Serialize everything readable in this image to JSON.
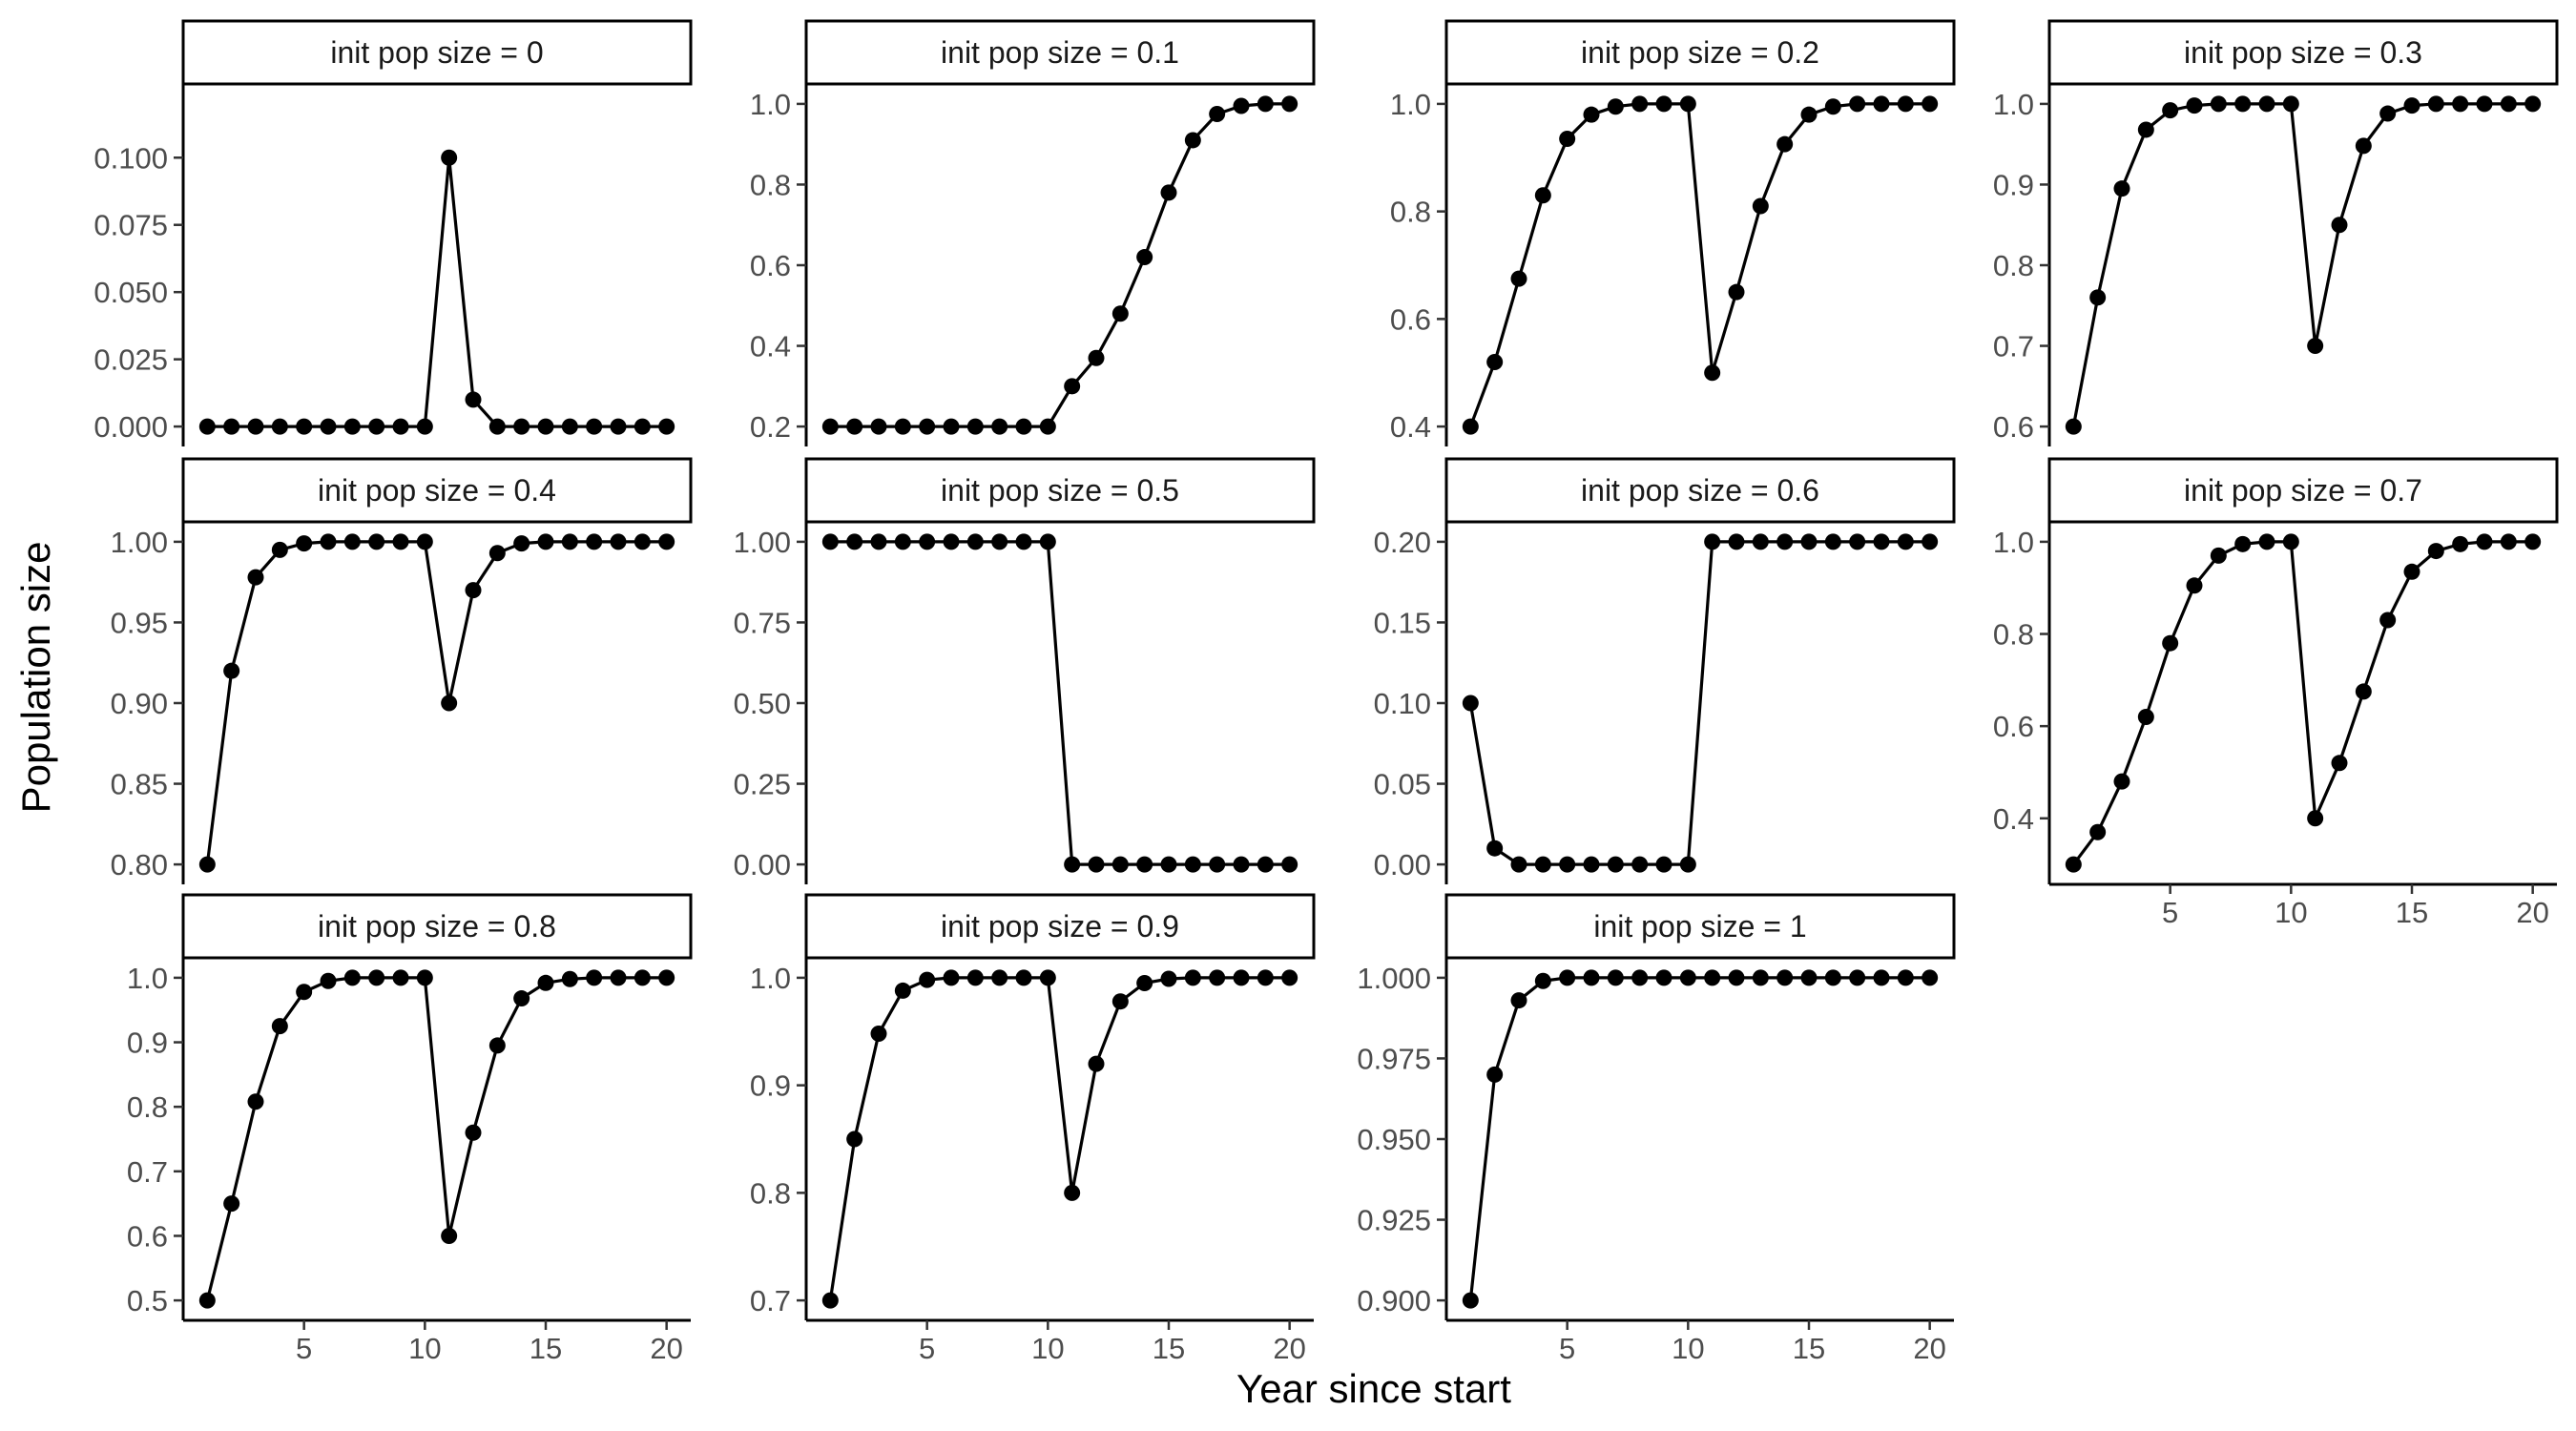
{
  "chart_data": {
    "type": "line",
    "xlabel": "Year since start",
    "ylabel": "Population size",
    "x": [
      1,
      2,
      3,
      4,
      5,
      6,
      7,
      8,
      9,
      10,
      11,
      12,
      13,
      14,
      15,
      16,
      17,
      18,
      19,
      20
    ],
    "panels": [
      {
        "label": "init pop size = 0",
        "ylim": [
          0,
          0.12
        ],
        "yticks": [
          0,
          0.025,
          0.05,
          0.075,
          0.1
        ],
        "ytick_labels": [
          "0.000",
          "0.025",
          "0.050",
          "0.075",
          "0.100"
        ],
        "show_x": false,
        "values": [
          0,
          0,
          0,
          0,
          0,
          0,
          0,
          0,
          0,
          0,
          0.1,
          0.01,
          0,
          0,
          0,
          0,
          0,
          0,
          0,
          0
        ]
      },
      {
        "label": "init pop size = 0.1",
        "ylim": [
          0.2,
          1.0
        ],
        "yticks": [
          0.2,
          0.4,
          0.6,
          0.8,
          1.0
        ],
        "ytick_labels": [
          "0.2",
          "0.4",
          "0.6",
          "0.8",
          "1.0"
        ],
        "show_x": false,
        "values": [
          0.2,
          0.2,
          0.2,
          0.2,
          0.2,
          0.2,
          0.2,
          0.2,
          0.2,
          0.2,
          0.3,
          0.37,
          0.48,
          0.62,
          0.78,
          0.91,
          0.975,
          0.995,
          1.0,
          1.0
        ]
      },
      {
        "label": "init pop size = 0.2",
        "ylim": [
          0.4,
          1.0
        ],
        "yticks": [
          0.4,
          0.6,
          0.8,
          1.0
        ],
        "ytick_labels": [
          "0.4",
          "0.6",
          "0.8",
          "1.0"
        ],
        "show_x": false,
        "values": [
          0.4,
          0.52,
          0.675,
          0.83,
          0.935,
          0.98,
          0.995,
          1.0,
          1.0,
          1.0,
          0.5,
          0.65,
          0.81,
          0.925,
          0.98,
          0.995,
          1.0,
          1.0,
          1.0,
          1.0
        ]
      },
      {
        "label": "init pop size = 0.3",
        "ylim": [
          0.6,
          1.0
        ],
        "yticks": [
          0.6,
          0.7,
          0.8,
          0.9,
          1.0
        ],
        "ytick_labels": [
          "0.6",
          "0.7",
          "0.8",
          "0.9",
          "1.0"
        ],
        "show_x": false,
        "values": [
          0.6,
          0.76,
          0.895,
          0.968,
          0.992,
          0.998,
          1.0,
          1.0,
          1.0,
          1.0,
          0.7,
          0.85,
          0.948,
          0.988,
          0.998,
          1.0,
          1.0,
          1.0,
          1.0,
          1.0
        ]
      },
      {
        "label": "init pop size = 0.4",
        "ylim": [
          0.8,
          1.0
        ],
        "yticks": [
          0.8,
          0.85,
          0.9,
          0.95,
          1.0
        ],
        "ytick_labels": [
          "0.80",
          "0.85",
          "0.90",
          "0.95",
          "1.00"
        ],
        "show_x": false,
        "values": [
          0.8,
          0.92,
          0.978,
          0.995,
          0.999,
          1.0,
          1.0,
          1.0,
          1.0,
          1.0,
          0.9,
          0.97,
          0.993,
          0.999,
          1.0,
          1.0,
          1.0,
          1.0,
          1.0,
          1.0
        ]
      },
      {
        "label": "init pop size = 0.5",
        "ylim": [
          0,
          1.0
        ],
        "yticks": [
          0,
          0.25,
          0.5,
          0.75,
          1.0
        ],
        "ytick_labels": [
          "0.00",
          "0.25",
          "0.50",
          "0.75",
          "1.00"
        ],
        "show_x": false,
        "values": [
          1,
          1,
          1,
          1,
          1,
          1,
          1,
          1,
          1,
          1,
          0,
          0,
          0,
          0,
          0,
          0,
          0,
          0,
          0,
          0
        ]
      },
      {
        "label": "init pop size = 0.6",
        "ylim": [
          0,
          0.2
        ],
        "yticks": [
          0,
          0.05,
          0.1,
          0.15,
          0.2
        ],
        "ytick_labels": [
          "0.00",
          "0.05",
          "0.10",
          "0.15",
          "0.20"
        ],
        "show_x": false,
        "values": [
          0.1,
          0.01,
          0,
          0,
          0,
          0,
          0,
          0,
          0,
          0,
          0.2,
          0.2,
          0.2,
          0.2,
          0.2,
          0.2,
          0.2,
          0.2,
          0.2,
          0.2
        ]
      },
      {
        "label": "init pop size = 0.7",
        "ylim": [
          0.3,
          1.0
        ],
        "yticks": [
          0.4,
          0.6,
          0.8,
          1.0
        ],
        "ytick_labels": [
          "0.4",
          "0.6",
          "0.8",
          "1.0"
        ],
        "show_x": true,
        "values": [
          0.3,
          0.37,
          0.48,
          0.62,
          0.78,
          0.905,
          0.97,
          0.995,
          1.0,
          1.0,
          0.4,
          0.52,
          0.675,
          0.83,
          0.935,
          0.98,
          0.995,
          1.0,
          1.0,
          1.0
        ]
      },
      {
        "label": "init pop size = 0.8",
        "ylim": [
          0.5,
          1.0
        ],
        "yticks": [
          0.5,
          0.6,
          0.7,
          0.8,
          0.9,
          1.0
        ],
        "ytick_labels": [
          "0.5",
          "0.6",
          "0.7",
          "0.8",
          "0.9",
          "1.0"
        ],
        "show_x": true,
        "values": [
          0.5,
          0.65,
          0.808,
          0.925,
          0.978,
          0.995,
          1.0,
          1.0,
          1.0,
          1.0,
          0.6,
          0.76,
          0.895,
          0.968,
          0.992,
          0.998,
          1.0,
          1.0,
          1.0,
          1.0
        ]
      },
      {
        "label": "init pop size = 0.9",
        "ylim": [
          0.7,
          1.0
        ],
        "yticks": [
          0.7,
          0.8,
          0.9,
          1.0
        ],
        "ytick_labels": [
          "0.7",
          "0.8",
          "0.9",
          "1.0"
        ],
        "show_x": true,
        "values": [
          0.7,
          0.85,
          0.948,
          0.988,
          0.998,
          1.0,
          1.0,
          1.0,
          1.0,
          1.0,
          0.8,
          0.92,
          0.978,
          0.995,
          0.999,
          1.0,
          1.0,
          1.0,
          1.0,
          1.0
        ]
      },
      {
        "label": "init pop size = 1",
        "ylim": [
          0.9,
          1.0
        ],
        "yticks": [
          0.9,
          0.925,
          0.95,
          0.975,
          1.0
        ],
        "ytick_labels": [
          "0.900",
          "0.925",
          "0.950",
          "0.975",
          "1.000"
        ],
        "show_x": true,
        "values": [
          0.9,
          0.97,
          0.993,
          0.999,
          1.0,
          1.0,
          1.0,
          1.0,
          1.0,
          1.0,
          1.0,
          1.0,
          1.0,
          1.0,
          1.0,
          1.0,
          1.0,
          1.0,
          1.0,
          1.0
        ]
      }
    ],
    "xlim": [
      0,
      21
    ],
    "xticks": [
      5,
      10,
      15,
      20
    ],
    "xtick_labels": [
      "5",
      "10",
      "15",
      "20"
    ]
  }
}
